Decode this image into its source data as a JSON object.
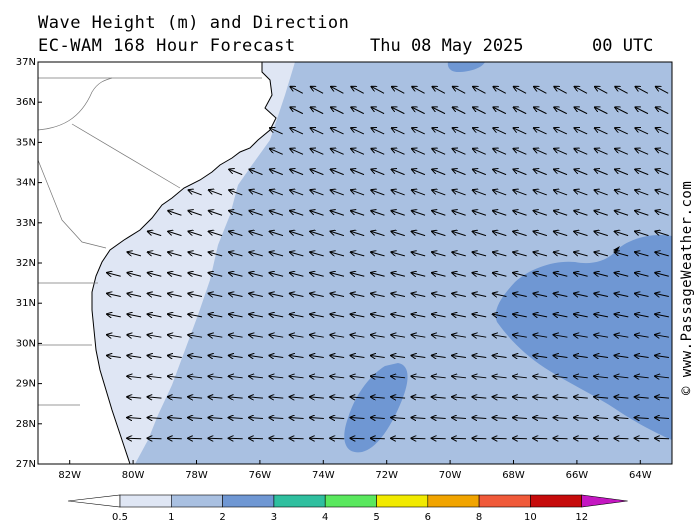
{
  "header": {
    "title_line1": "Wave Height (m) and Direction",
    "title_line2": "EC-WAM 168 Hour Forecast",
    "date": "Thu 08 May 2025",
    "time": "00 UTC"
  },
  "credit": "© www.PassageWeather.com",
  "map": {
    "lat_range": [
      27,
      37
    ],
    "lon_range": [
      -83,
      -63
    ],
    "lat_labels": [
      "37N",
      "36N",
      "35N",
      "34N",
      "33N",
      "32N",
      "31N",
      "30N",
      "29N",
      "28N",
      "27N"
    ],
    "lon_labels": [
      "82W",
      "80W",
      "78W",
      "76W",
      "74W",
      "72W",
      "70W",
      "68W",
      "66W",
      "64W"
    ],
    "land_color": "#ffffff",
    "arrow_direction": "waves travelling toward the west-northwest in the north, toward the west in the south"
  },
  "legend": {
    "values": [
      "0.5",
      "1",
      "2",
      "3",
      "4",
      "5",
      "6",
      "8",
      "10",
      "12"
    ],
    "colors": [
      "#dfe6f4",
      "#a9c0e1",
      "#6f97d3",
      "#2fbf9f",
      "#5ae85e",
      "#f1ea00",
      "#f1a400",
      "#f05a3a",
      "#c60b0b",
      "#c417c1"
    ]
  }
}
